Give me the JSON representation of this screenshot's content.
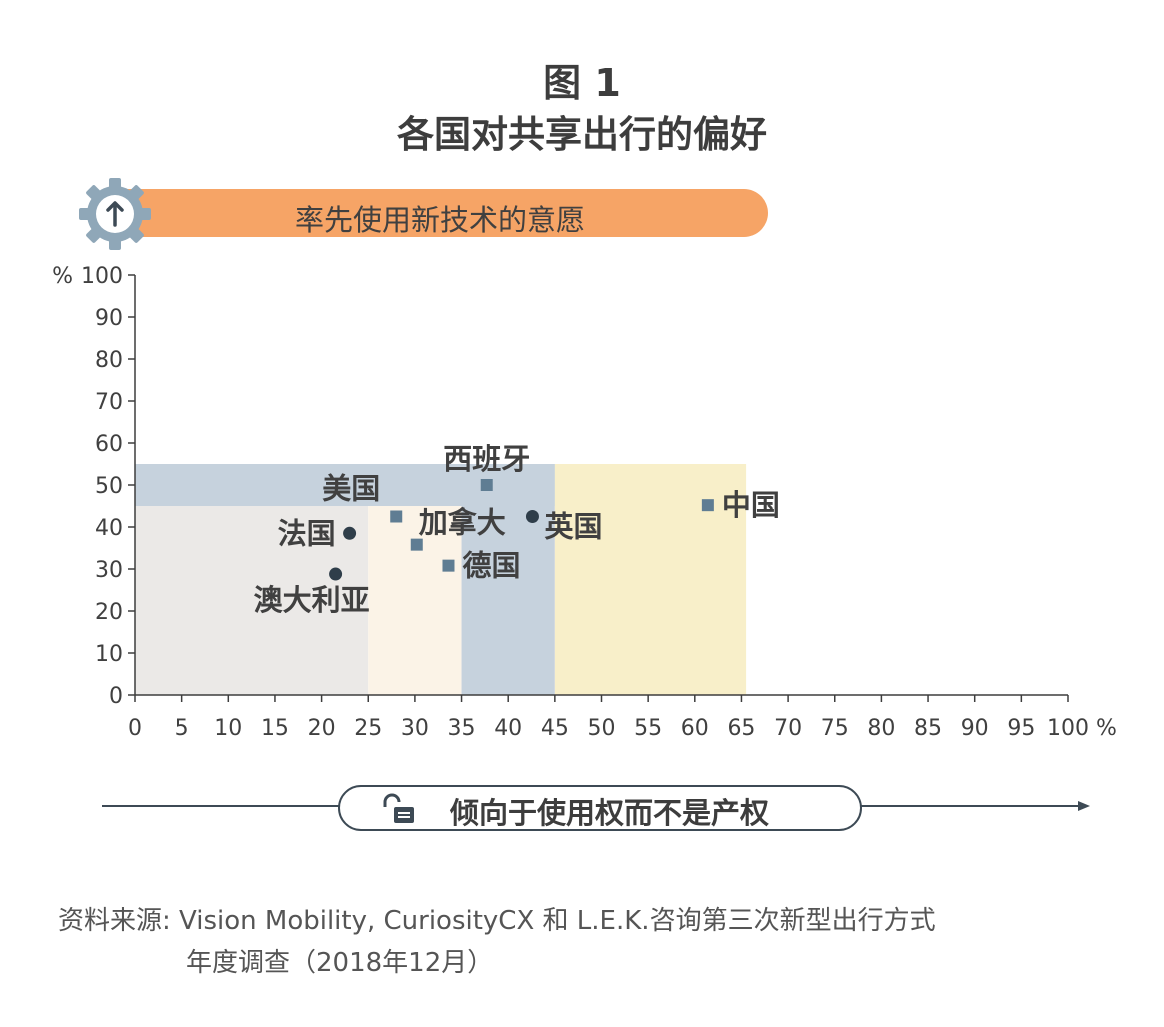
{
  "title_line1": "图 1",
  "title_line2": "各国对共享出行的偏好",
  "banner_label": "率先使用新技术的意愿",
  "xaxis_banner_label": "倾向于使用权而不是产权",
  "source_line1": "资料来源: Vision Mobility, CuriosityCX 和 L.E.K.咨询第三次新型出行方式",
  "source_line2": "年度调查（2018年12月）",
  "icons": {
    "banner": "gear-arrow-up-icon",
    "xaxis": "unlocked-padlock-icon"
  },
  "colors": {
    "banner": "#f6a466",
    "blue_band": "#c6d2dd",
    "gray_region": "#ebe9e7",
    "cream_region": "#fbf3e7",
    "yellow_region": "#f8efc9",
    "square_marker": "#5f7d93",
    "circle_marker": "#2f3e4a"
  },
  "chart_data": {
    "type": "scatter",
    "x_unit": "%",
    "y_unit": "%",
    "xlim": [
      0,
      100
    ],
    "ylim": [
      0,
      100
    ],
    "x_ticks": [
      0,
      5,
      10,
      15,
      20,
      25,
      30,
      35,
      40,
      45,
      50,
      55,
      60,
      65,
      70,
      75,
      80,
      85,
      90,
      95,
      100
    ],
    "y_ticks": [
      0,
      10,
      20,
      30,
      40,
      50,
      60,
      70,
      80,
      90,
      100
    ],
    "regions": [
      {
        "name": "gray",
        "x": [
          0,
          25
        ],
        "y": [
          0,
          45
        ],
        "color": "#ebe9e7"
      },
      {
        "name": "cream",
        "x": [
          25,
          35
        ],
        "y": [
          0,
          45
        ],
        "color": "#fbf3e7"
      },
      {
        "name": "blue-band",
        "x": [
          0,
          45
        ],
        "y": [
          45,
          55
        ],
        "color": "#c6d2dd"
      },
      {
        "name": "blue-column",
        "x": [
          35,
          45
        ],
        "y": [
          0,
          55
        ],
        "color": "#c6d2dd"
      },
      {
        "name": "yellow",
        "x": [
          45,
          65.5
        ],
        "y": [
          0,
          55
        ],
        "color": "#f8efc9"
      }
    ],
    "points": [
      {
        "label": "西班牙",
        "x": 37.7,
        "y": 50,
        "marker": "square",
        "label_pos": "above"
      },
      {
        "label": "美国",
        "x": 28,
        "y": 42.5,
        "marker": "square",
        "label_pos": "above-left"
      },
      {
        "label": "法国",
        "x": 23,
        "y": 38.5,
        "marker": "circle",
        "label_pos": "left"
      },
      {
        "label": "加拿大",
        "x": 30.2,
        "y": 35.8,
        "marker": "square",
        "label_pos": "above-right"
      },
      {
        "label": "英国",
        "x": 42.6,
        "y": 42.5,
        "marker": "circle",
        "label_pos": "below-right"
      },
      {
        "label": "德国",
        "x": 33.6,
        "y": 30.8,
        "marker": "square",
        "label_pos": "right"
      },
      {
        "label": "澳大利亚",
        "x": 21.5,
        "y": 28.8,
        "marker": "circle",
        "label_pos": "below"
      },
      {
        "label": "中国",
        "x": 61.4,
        "y": 45.2,
        "marker": "square",
        "label_pos": "right"
      }
    ]
  }
}
